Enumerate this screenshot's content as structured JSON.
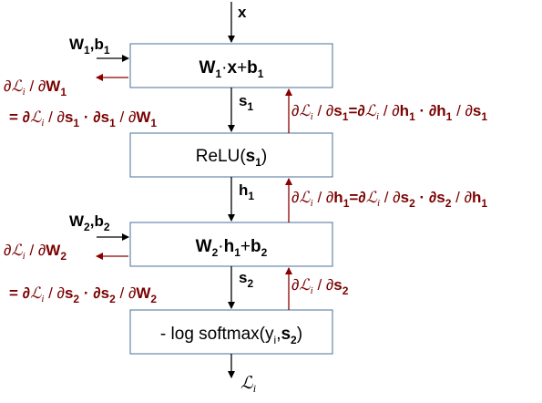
{
  "input": {
    "var": "x"
  },
  "layer1": {
    "params": {
      "w": "W",
      "w_sub": "1",
      "sep": ",",
      "b": "b",
      "b_sub": "1"
    },
    "box": {
      "w": "W",
      "w_sub": "1",
      "dot": "·",
      "x": "x",
      "plus": "+",
      "b": "b",
      "b_sub": "1"
    },
    "out": {
      "s": "s",
      "s_sub": "1"
    },
    "grad_w": {
      "partial": "∂",
      "L": "ℒ",
      "i": "i",
      "slash": " / ∂",
      "w": "W",
      "w_sub": "1"
    },
    "grad_w_chain": {
      "eq": "= ∂",
      "L": "ℒ",
      "i": "i",
      "mid1": " / ∂",
      "s": "s",
      "s_sub": "1",
      "mid2": " · ∂",
      "s2": "s",
      "s2_sub": "1",
      "mid3": " / ∂",
      "w": "W",
      "w_sub": "1"
    },
    "grad_s": {
      "p": "∂",
      "L": "ℒ",
      "i": "i",
      "m1": " / ∂",
      "s": "s",
      "s_sub": "1",
      "eq": "=∂",
      "L2": "ℒ",
      "i2": "i",
      "m2": " / ∂",
      "h": "h",
      "h_sub": "1",
      "m3": " · ∂",
      "h2": "h",
      "h2_sub": "1",
      "m4": " / ∂",
      "s2": "s",
      "s2_sub": "1"
    }
  },
  "relu": {
    "box": {
      "name": "ReLU(",
      "s": "s",
      "s_sub": "1",
      "close": ")"
    },
    "out": {
      "h": "h",
      "h_sub": "1"
    },
    "grad_h": {
      "p": "∂",
      "L": "ℒ",
      "i": "i",
      "m1": " / ∂",
      "h": "h",
      "h_sub": "1",
      "eq": "=∂",
      "L2": "ℒ",
      "i2": "i",
      "m2": " / ∂",
      "s": "s",
      "s_sub": "2",
      "m3": " · ∂",
      "s2": "s",
      "s2_sub": "2",
      "m4": " / ∂",
      "h2": "h",
      "h2_sub": "1"
    }
  },
  "layer2": {
    "params": {
      "w": "W",
      "w_sub": "2",
      "sep": ",",
      "b": "b",
      "b_sub": "2"
    },
    "box": {
      "w": "W",
      "w_sub": "2",
      "dot": "·",
      "h": "h",
      "h_sub": "1",
      "plus": "+",
      "b": "b",
      "b_sub": "2"
    },
    "out": {
      "s": "s",
      "s_sub": "2"
    },
    "grad_w": {
      "partial": "∂",
      "L": "ℒ",
      "i": "i",
      "slash": " / ∂",
      "w": "W",
      "w_sub": "2"
    },
    "grad_w_chain": {
      "eq": "= ∂",
      "L": "ℒ",
      "i": "i",
      "mid1": " / ∂",
      "s": "s",
      "s_sub": "2",
      "mid2": " · ∂",
      "s2": "s",
      "s2_sub": "2",
      "mid3": " / ∂",
      "w": "W",
      "w_sub": "2"
    },
    "grad_s": {
      "p": "∂",
      "L": "ℒ",
      "i": "i",
      "m1": " / ∂",
      "s": "s",
      "s_sub": "2"
    }
  },
  "loss": {
    "box": {
      "pre": "- log softmax(",
      "y": "y",
      "y_sub": "i",
      "comma": ",",
      "s": "s",
      "s_sub": "2",
      "close": ")"
    },
    "out": {
      "L": "ℒ",
      "i": "i"
    }
  },
  "colors": {
    "forward": "#000000",
    "backward": "#8b0000",
    "box_stroke": "#4a6f99"
  }
}
